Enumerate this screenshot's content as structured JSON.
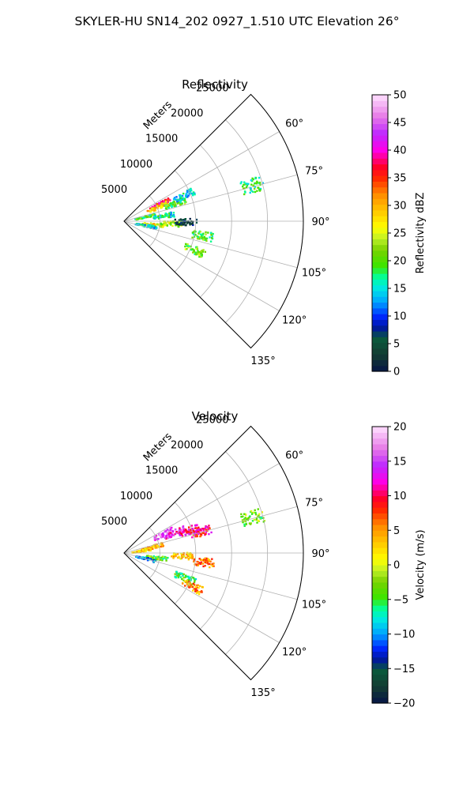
{
  "suptitle": "SKYLER-HU  SN14_202  0927_1.510 UTC Elevation 26°",
  "chart_data": [
    {
      "type": "polar-sector",
      "title": "Reflectivity",
      "rlabel": "Meters",
      "r_ticks": [
        5000,
        10000,
        15000,
        20000,
        25000
      ],
      "r_tick_labels": [
        "5000",
        "10000",
        "15000",
        "20000",
        "25000"
      ],
      "rlim": [
        0,
        25000
      ],
      "theta_range_deg": [
        45,
        135
      ],
      "theta_ticks_deg": [
        60,
        75,
        90,
        105,
        120,
        135
      ],
      "theta_tick_labels": [
        "60°",
        "75°",
        "90°",
        "105°",
        "120°",
        "135°"
      ],
      "grid": true,
      "colorbar": {
        "label": "Reflectivity dBZ",
        "range": [
          0,
          50
        ],
        "ticks": [
          0,
          5,
          10,
          15,
          20,
          25,
          30,
          35,
          40,
          45,
          50
        ],
        "tick_labels": [
          "0",
          "5",
          "10",
          "15",
          "20",
          "25",
          "30",
          "35",
          "40",
          "45",
          "50"
        ]
      },
      "echo_clusters": [
        {
          "range_m": 5500,
          "azimuth_deg": 63,
          "value": 37
        },
        {
          "range_m": 5000,
          "azimuth_deg": 66,
          "value": 28
        },
        {
          "range_m": 7500,
          "azimuth_deg": 70,
          "value": 20
        },
        {
          "range_m": 9000,
          "azimuth_deg": 66,
          "value": 14
        },
        {
          "range_m": 3000,
          "azimuth_deg": 76,
          "value": 19
        },
        {
          "range_m": 5500,
          "azimuth_deg": 81,
          "value": 16
        },
        {
          "range_m": 4000,
          "azimuth_deg": 95,
          "value": 27
        },
        {
          "range_m": 6500,
          "azimuth_deg": 92,
          "value": 23
        },
        {
          "range_m": 8500,
          "azimuth_deg": 90,
          "value": 4
        },
        {
          "range_m": 3000,
          "azimuth_deg": 100,
          "value": 15
        },
        {
          "range_m": 11000,
          "azimuth_deg": 100,
          "value": 20
        },
        {
          "range_m": 10500,
          "azimuth_deg": 112,
          "value": 21
        },
        {
          "range_m": 18500,
          "azimuth_deg": 74,
          "value": 18
        }
      ]
    },
    {
      "type": "polar-sector",
      "title": "Velocity",
      "rlabel": "Meters",
      "r_ticks": [
        5000,
        10000,
        15000,
        20000,
        25000
      ],
      "r_tick_labels": [
        "5000",
        "10000",
        "15000",
        "20000",
        "25000"
      ],
      "rlim": [
        0,
        25000
      ],
      "theta_range_deg": [
        45,
        135
      ],
      "theta_ticks_deg": [
        60,
        75,
        90,
        105,
        120,
        135
      ],
      "theta_tick_labels": [
        "60°",
        "75°",
        "90°",
        "105°",
        "120°",
        "135°"
      ],
      "grid": true,
      "colorbar": {
        "label": "Velocity (m/s)",
        "range": [
          -20,
          20
        ],
        "ticks": [
          -20,
          -15,
          -10,
          -5,
          0,
          5,
          10,
          15,
          20
        ],
        "tick_labels": [
          "−20",
          "−15",
          "−10",
          "−5",
          "0",
          "5",
          "10",
          "15",
          "20"
        ]
      },
      "echo_clusters": [
        {
          "range_m": 6000,
          "azimuth_deg": 63,
          "value": 15
        },
        {
          "range_m": 7500,
          "azimuth_deg": 67,
          "value": 13
        },
        {
          "range_m": 9500,
          "azimuth_deg": 70,
          "value": 11
        },
        {
          "range_m": 4000,
          "azimuth_deg": 76,
          "value": 4
        },
        {
          "range_m": 2500,
          "azimuth_deg": 80,
          "value": 3
        },
        {
          "range_m": 4500,
          "azimuth_deg": 97,
          "value": -4
        },
        {
          "range_m": 3000,
          "azimuth_deg": 103,
          "value": -11
        },
        {
          "range_m": 8000,
          "azimuth_deg": 92,
          "value": 3
        },
        {
          "range_m": 11000,
          "azimuth_deg": 96,
          "value": 6
        },
        {
          "range_m": 11000,
          "azimuth_deg": 74,
          "value": 10
        },
        {
          "range_m": 9000,
          "azimuth_deg": 112,
          "value": -5
        },
        {
          "range_m": 10500,
          "azimuth_deg": 116,
          "value": 5
        },
        {
          "range_m": 18500,
          "azimuth_deg": 74,
          "value": -3
        }
      ]
    }
  ]
}
